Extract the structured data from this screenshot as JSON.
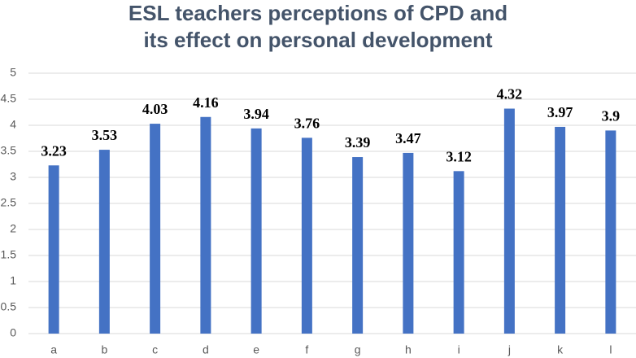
{
  "chart_data": {
    "type": "bar",
    "title": "ESL teachers perceptions of CPD and its effect on personal development",
    "categories": [
      "a",
      "b",
      "c",
      "d",
      "e",
      "f",
      "g",
      "h",
      "i",
      "j",
      "k",
      "l"
    ],
    "values": [
      3.23,
      3.53,
      4.03,
      4.16,
      3.94,
      3.76,
      3.39,
      3.47,
      3.12,
      4.32,
      3.97,
      3.9
    ],
    "color": "#4472c4",
    "ylim": [
      0,
      5
    ],
    "yticks": [
      0,
      0.5,
      1,
      1.5,
      2,
      2.5,
      3,
      3.5,
      4,
      4.5,
      5
    ],
    "grid": true
  }
}
